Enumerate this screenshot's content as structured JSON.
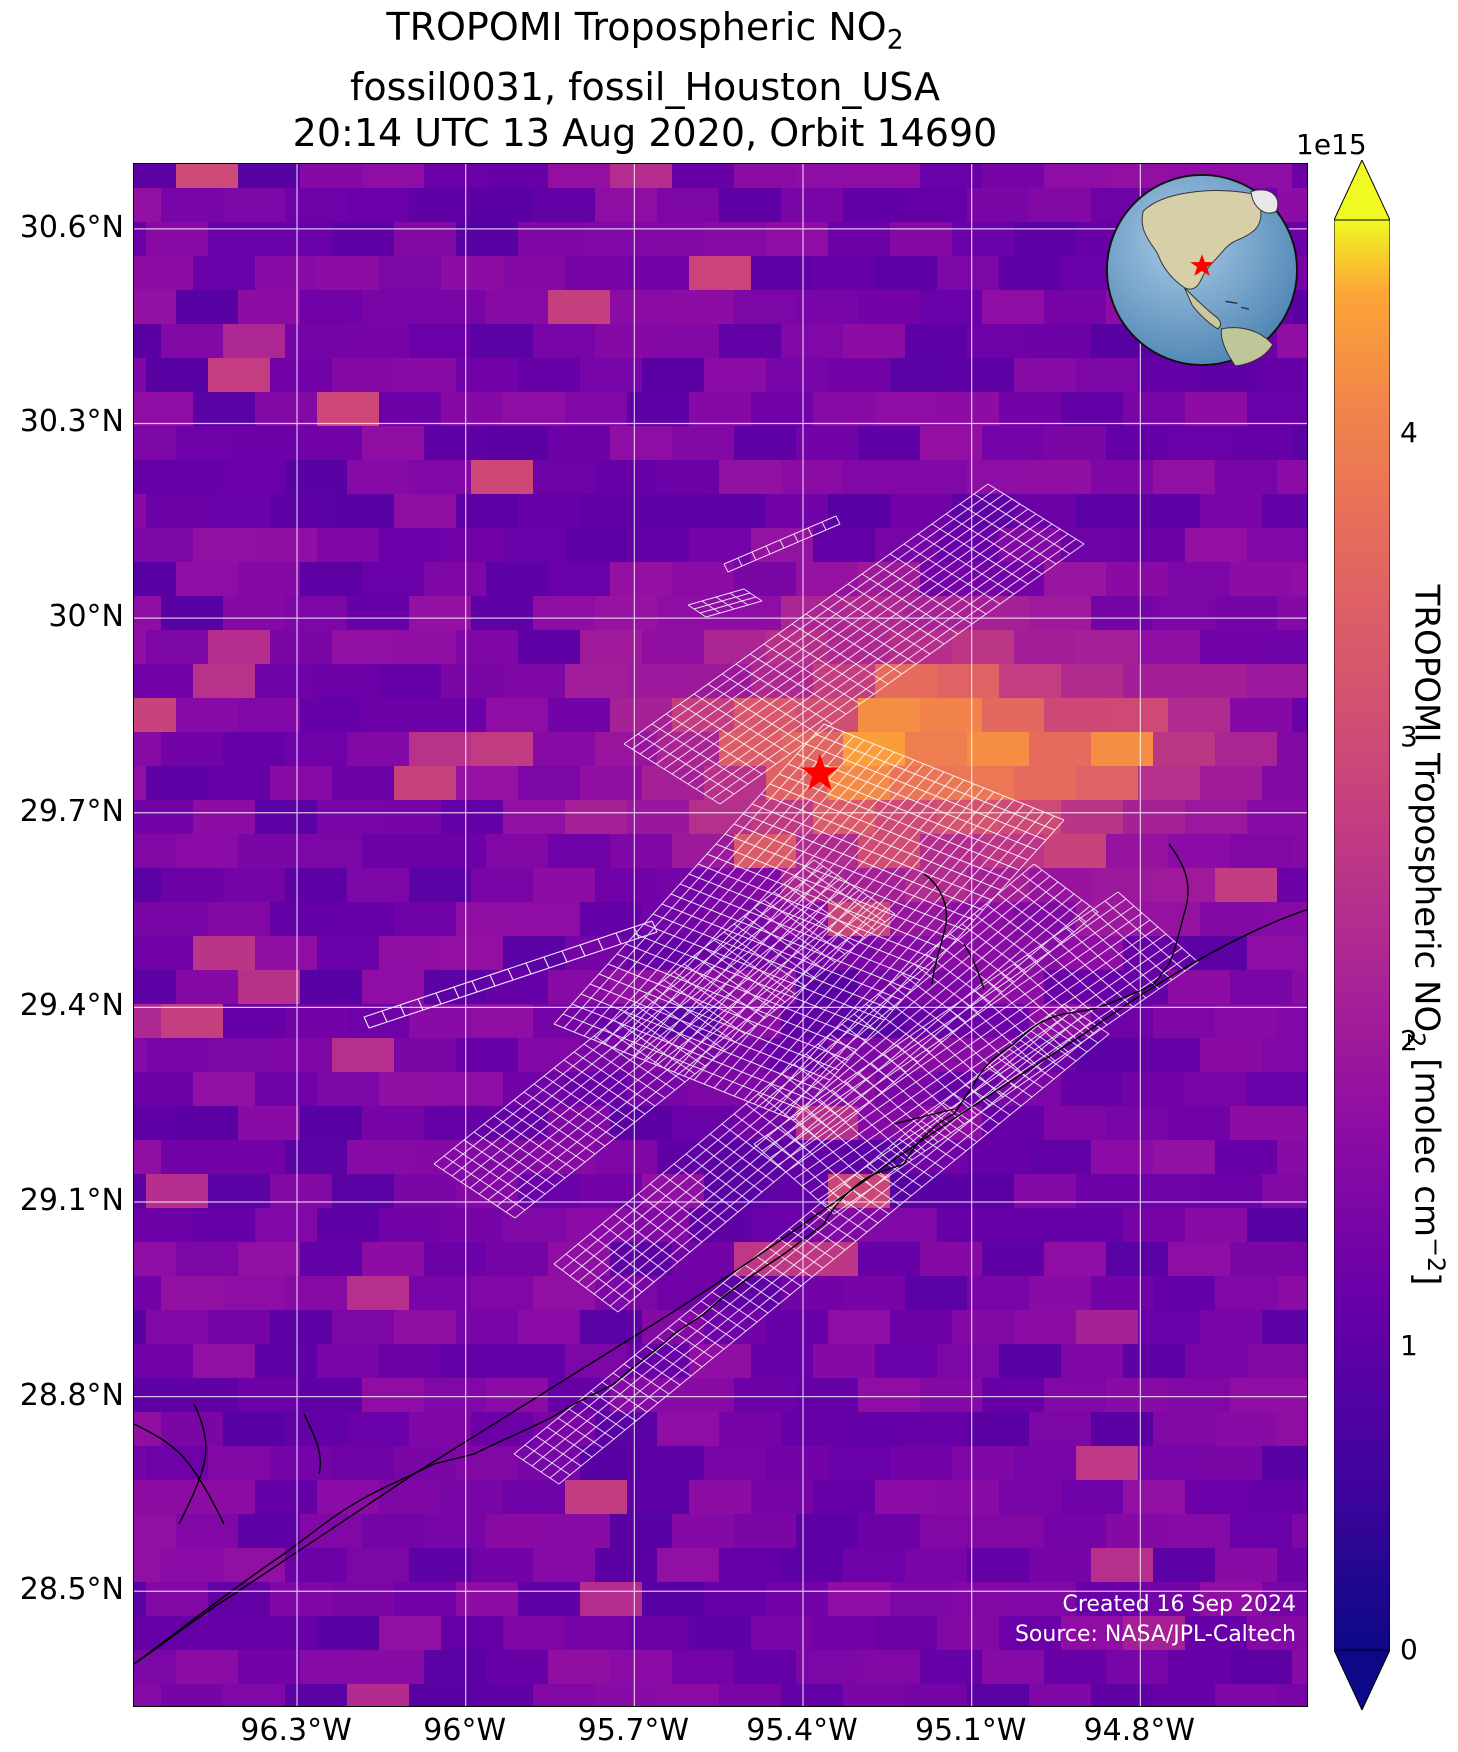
{
  "title": {
    "line1_prefix": "TROPOMI Tropospheric NO",
    "line1_sub": "2",
    "line2": "fossil0031, fossil_Houston_USA",
    "line3": "20:14 UTC 13 Aug 2020, Orbit 14690"
  },
  "map": {
    "lat_labels": [
      "30.6°N",
      "30.3°N",
      "30°N",
      "29.7°N",
      "29.4°N",
      "29.1°N",
      "28.8°N",
      "28.5°N"
    ],
    "lon_labels": [
      "96.3°W",
      "96°W",
      "95.7°W",
      "95.4°W",
      "95.1°W",
      "94.8°W"
    ],
    "lat_values": [
      30.6,
      30.3,
      30.0,
      29.7,
      29.4,
      29.1,
      28.8,
      28.5
    ],
    "lon_values": [
      -96.3,
      -96.0,
      -95.7,
      -95.4,
      -95.1,
      -94.8
    ],
    "lon_range": [
      -96.59,
      -94.5
    ],
    "lat_range": [
      28.32,
      30.7
    ],
    "gridlines": true,
    "target_marker": {
      "name": "fossil_Houston_USA",
      "lat": 29.76,
      "lon": -95.37,
      "symbol": "star",
      "color": "#ff0000"
    },
    "overlay": "white target-mode footprint grid",
    "background_colormap": "plasma"
  },
  "inset_globe": {
    "centered_on": "North America",
    "marker": "star",
    "marker_color": "#ff0000"
  },
  "credits": {
    "created": "Created 16 Sep 2024",
    "source": "Source: NASA/JPL-Caltech"
  },
  "colorbar": {
    "exponent": "1e15",
    "ticks": [
      "0",
      "1",
      "2",
      "3",
      "4"
    ],
    "tick_values": [
      0,
      1,
      2,
      3,
      4
    ],
    "range": [
      0,
      4.7
    ],
    "extend": "both",
    "label_prefix": "TROPOMI Tropospheric NO",
    "label_sub": "2",
    "label_mid": " [molec cm",
    "label_sup": "−2",
    "label_suffix": "]"
  },
  "colors": {
    "plasma_low": "#0d0887",
    "plasma_mid": "#cc4778",
    "plasma_high": "#f0f921"
  }
}
